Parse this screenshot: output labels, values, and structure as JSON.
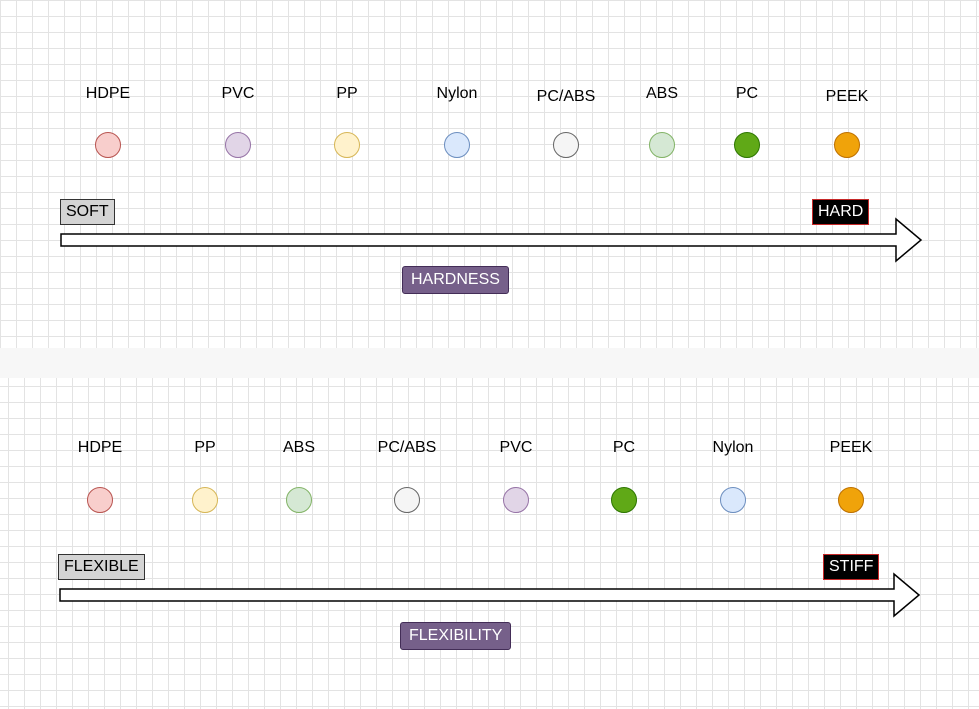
{
  "hardness": {
    "materials": [
      {
        "name": "HDPE",
        "fill": "#f8cecc",
        "stroke": "#b85450"
      },
      {
        "name": "PVC",
        "fill": "#e1d5e7",
        "stroke": "#9673a6"
      },
      {
        "name": "PP",
        "fill": "#fff2cc",
        "stroke": "#d6b656"
      },
      {
        "name": "Nylon",
        "fill": "#dae8fc",
        "stroke": "#6c8ebf"
      },
      {
        "name": "PC/ABS",
        "fill": "#f5f5f5",
        "stroke": "#666666"
      },
      {
        "name": "ABS",
        "fill": "#d5e8d4",
        "stroke": "#82b366"
      },
      {
        "name": "PC",
        "fill": "#60a917",
        "stroke": "#2d7600"
      },
      {
        "name": "PEEK",
        "fill": "#f0a30a",
        "stroke": "#bd7000"
      }
    ],
    "low_label": "SOFT",
    "high_label": "HARD",
    "axis_title": "HARDNESS"
  },
  "flexibility": {
    "materials": [
      {
        "name": "HDPE",
        "fill": "#f8cecc",
        "stroke": "#b85450"
      },
      {
        "name": "PP",
        "fill": "#fff2cc",
        "stroke": "#d6b656"
      },
      {
        "name": "ABS",
        "fill": "#d5e8d4",
        "stroke": "#82b366"
      },
      {
        "name": "PC/ABS",
        "fill": "#f5f5f5",
        "stroke": "#666666"
      },
      {
        "name": "PVC",
        "fill": "#e1d5e7",
        "stroke": "#9673a6"
      },
      {
        "name": "PC",
        "fill": "#60a917",
        "stroke": "#2d7600"
      },
      {
        "name": "Nylon",
        "fill": "#dae8fc",
        "stroke": "#6c8ebf"
      },
      {
        "name": "PEEK",
        "fill": "#f0a30a",
        "stroke": "#bd7000"
      }
    ],
    "low_label": "FLEXIBLE",
    "high_label": "STIFF",
    "axis_title": "FLEXIBILITY"
  },
  "colors": {
    "tag_fill": "#76608a",
    "grid": "#e3e3e3"
  }
}
